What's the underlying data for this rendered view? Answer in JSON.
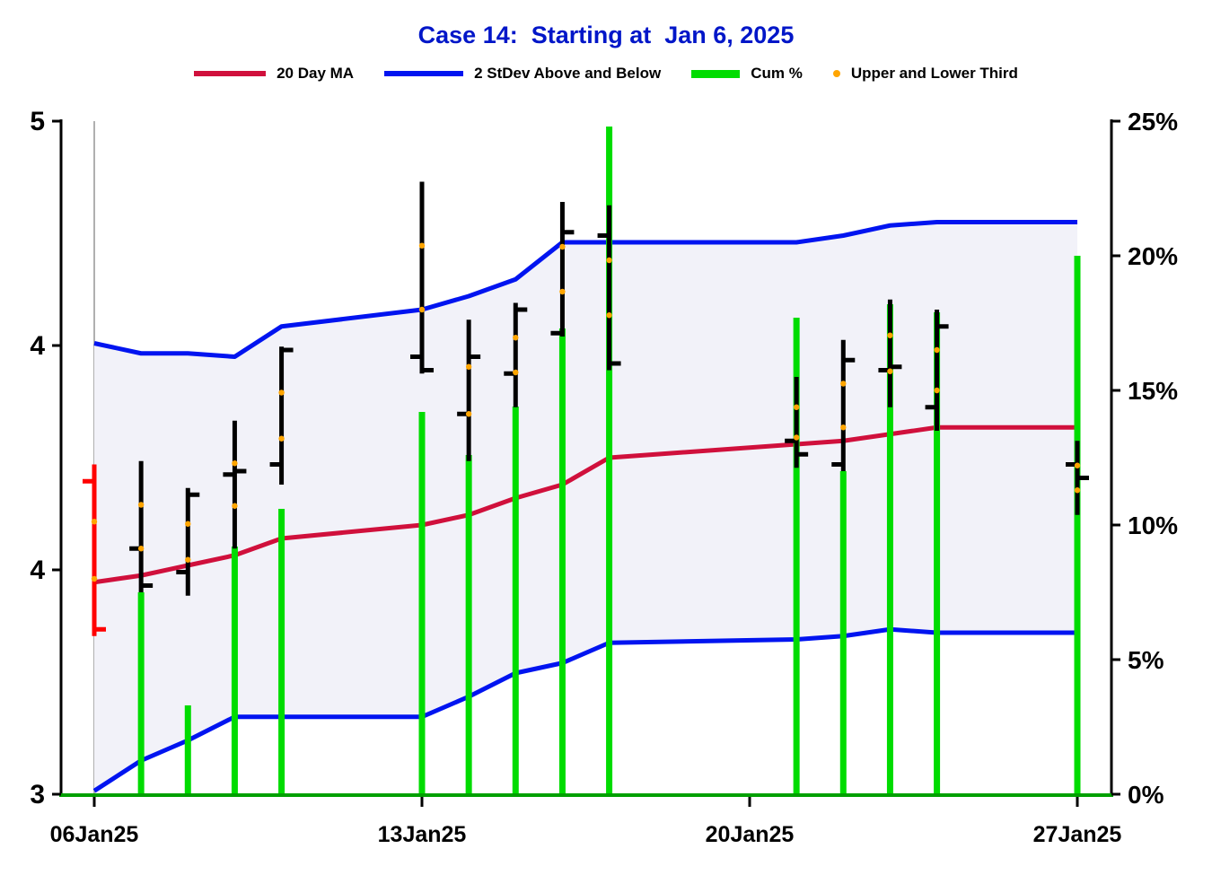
{
  "title": "Case 14:  Starting at  Jan 6, 2025",
  "legend": {
    "ma": "20 Day MA",
    "band": "2 StDev Above and Below",
    "cum": "Cum %",
    "thirds": "Upper and Lower Third"
  },
  "colors": {
    "title": "#0016c8",
    "ma_line": "#d0103c",
    "band_line": "#0014f0",
    "band_fill": "#f2f2f9",
    "cum_bar": "#00dc00",
    "thirds_dot": "#ffa500",
    "first_bar": "#ff0000",
    "hlc_bar": "#000000",
    "axis": "#000000",
    "axis_bottom": "#00a000",
    "start_line": "#b0b0b0",
    "text": "#000000"
  },
  "chart_data": {
    "type": "mixed",
    "subtype": "daily HLC price bars with upper/lower-third dots, 20-day moving average line, 2-stdev band (filled), and cumulative % bars on secondary axis",
    "title": "Case 14:  Starting at  Jan 6, 2025",
    "price_axis": {
      "side": "left",
      "min": 3,
      "max": 5,
      "ticks": [
        {
          "value": 3,
          "label": "3"
        },
        {
          "value": 3.6667,
          "label": "4"
        },
        {
          "value": 4.3333,
          "label": "4"
        },
        {
          "value": 5,
          "label": "5"
        }
      ]
    },
    "pct_axis": {
      "side": "right",
      "min": 0,
      "max": 25,
      "ticks": [
        {
          "value": 0,
          "label": "0%"
        },
        {
          "value": 5,
          "label": "5%"
        },
        {
          "value": 10,
          "label": "10%"
        },
        {
          "value": 15,
          "label": "15%"
        },
        {
          "value": 20,
          "label": "20%"
        },
        {
          "value": 25,
          "label": "25%"
        }
      ]
    },
    "x_axis": {
      "max_offset": 21,
      "ticks": [
        {
          "offset": 0,
          "label": "06Jan25"
        },
        {
          "offset": 7,
          "label": "13Jan25"
        },
        {
          "offset": 14,
          "label": "20Jan25"
        },
        {
          "offset": 21,
          "label": "27Jan25"
        }
      ]
    },
    "days": [
      {
        "date": "06Jan25",
        "offset": 0,
        "high": 3.98,
        "low": 3.47,
        "open": 3.93,
        "close": 3.49,
        "cum_pct": null,
        "ma20": 3.63,
        "band_upper": 4.34,
        "band_lower": 3.01,
        "bar_color": "red"
      },
      {
        "date": "07Jan25",
        "offset": 1,
        "high": 3.99,
        "low": 3.6,
        "open": 3.73,
        "close": 3.62,
        "cum_pct": 7.5,
        "ma20": 3.65,
        "band_upper": 4.31,
        "band_lower": 3.1
      },
      {
        "date": "08Jan25",
        "offset": 2,
        "high": 3.91,
        "low": 3.59,
        "open": 3.66,
        "close": 3.89,
        "cum_pct": 3.3,
        "ma20": 3.68,
        "band_upper": 4.31,
        "band_lower": 3.16
      },
      {
        "date": "09Jan25",
        "offset": 3,
        "high": 4.11,
        "low": 3.73,
        "open": 3.95,
        "close": 3.96,
        "cum_pct": 9.2,
        "ma20": 3.71,
        "band_upper": 4.3,
        "band_lower": 3.23
      },
      {
        "date": "10Jan25",
        "offset": 4,
        "high": 4.33,
        "low": 3.92,
        "open": 3.98,
        "close": 4.32,
        "cum_pct": 10.6,
        "ma20": 3.76,
        "band_upper": 4.39,
        "band_lower": 3.23
      },
      {
        "date": "13Jan25",
        "offset": 7,
        "high": 4.82,
        "low": 4.25,
        "open": 4.3,
        "close": 4.26,
        "cum_pct": 14.2,
        "ma20": 3.8,
        "band_upper": 4.44,
        "band_lower": 3.23
      },
      {
        "date": "14Jan25",
        "offset": 8,
        "high": 4.41,
        "low": 3.99,
        "open": 4.13,
        "close": 4.3,
        "cum_pct": 12.6,
        "ma20": 3.83,
        "band_upper": 4.48,
        "band_lower": 3.29
      },
      {
        "date": "15Jan25",
        "offset": 9,
        "high": 4.46,
        "low": 4.15,
        "open": 4.25,
        "close": 4.44,
        "cum_pct": 14.4,
        "ma20": 3.88,
        "band_upper": 4.53,
        "band_lower": 3.36
      },
      {
        "date": "16Jan25",
        "offset": 10,
        "high": 4.76,
        "low": 4.36,
        "open": 4.37,
        "close": 4.67,
        "cum_pct": 17.3,
        "ma20": 3.92,
        "band_upper": 4.64,
        "band_lower": 3.39
      },
      {
        "date": "17Jan25",
        "offset": 11,
        "high": 4.75,
        "low": 4.26,
        "open": 4.66,
        "close": 4.28,
        "cum_pct": 24.8,
        "ma20": 4.0,
        "band_upper": 4.64,
        "band_lower": 3.45
      },
      {
        "date": "21Jan25",
        "offset": 15,
        "high": 4.24,
        "low": 3.97,
        "open": 4.05,
        "close": 4.01,
        "cum_pct": 17.7,
        "ma20": 4.04,
        "band_upper": 4.64,
        "band_lower": 3.46
      },
      {
        "date": "22Jan25",
        "offset": 16,
        "high": 4.35,
        "low": 3.96,
        "open": 3.98,
        "close": 4.29,
        "cum_pct": 12.0,
        "ma20": 4.05,
        "band_upper": 4.66,
        "band_lower": 3.47
      },
      {
        "date": "23Jan25",
        "offset": 17,
        "high": 4.47,
        "low": 4.15,
        "open": 4.26,
        "close": 4.27,
        "cum_pct": 18.2,
        "ma20": 4.07,
        "band_upper": 4.69,
        "band_lower": 3.49
      },
      {
        "date": "24Jan25",
        "offset": 18,
        "high": 4.44,
        "low": 4.08,
        "open": 4.15,
        "close": 4.39,
        "cum_pct": 17.9,
        "ma20": 4.09,
        "band_upper": 4.7,
        "band_lower": 3.48
      },
      {
        "date": "27Jan25",
        "offset": 21,
        "high": 4.05,
        "low": 3.83,
        "open": 3.98,
        "close": 3.94,
        "cum_pct": 20.0,
        "ma20": 4.09,
        "band_upper": 4.7,
        "band_lower": 3.48
      }
    ]
  }
}
